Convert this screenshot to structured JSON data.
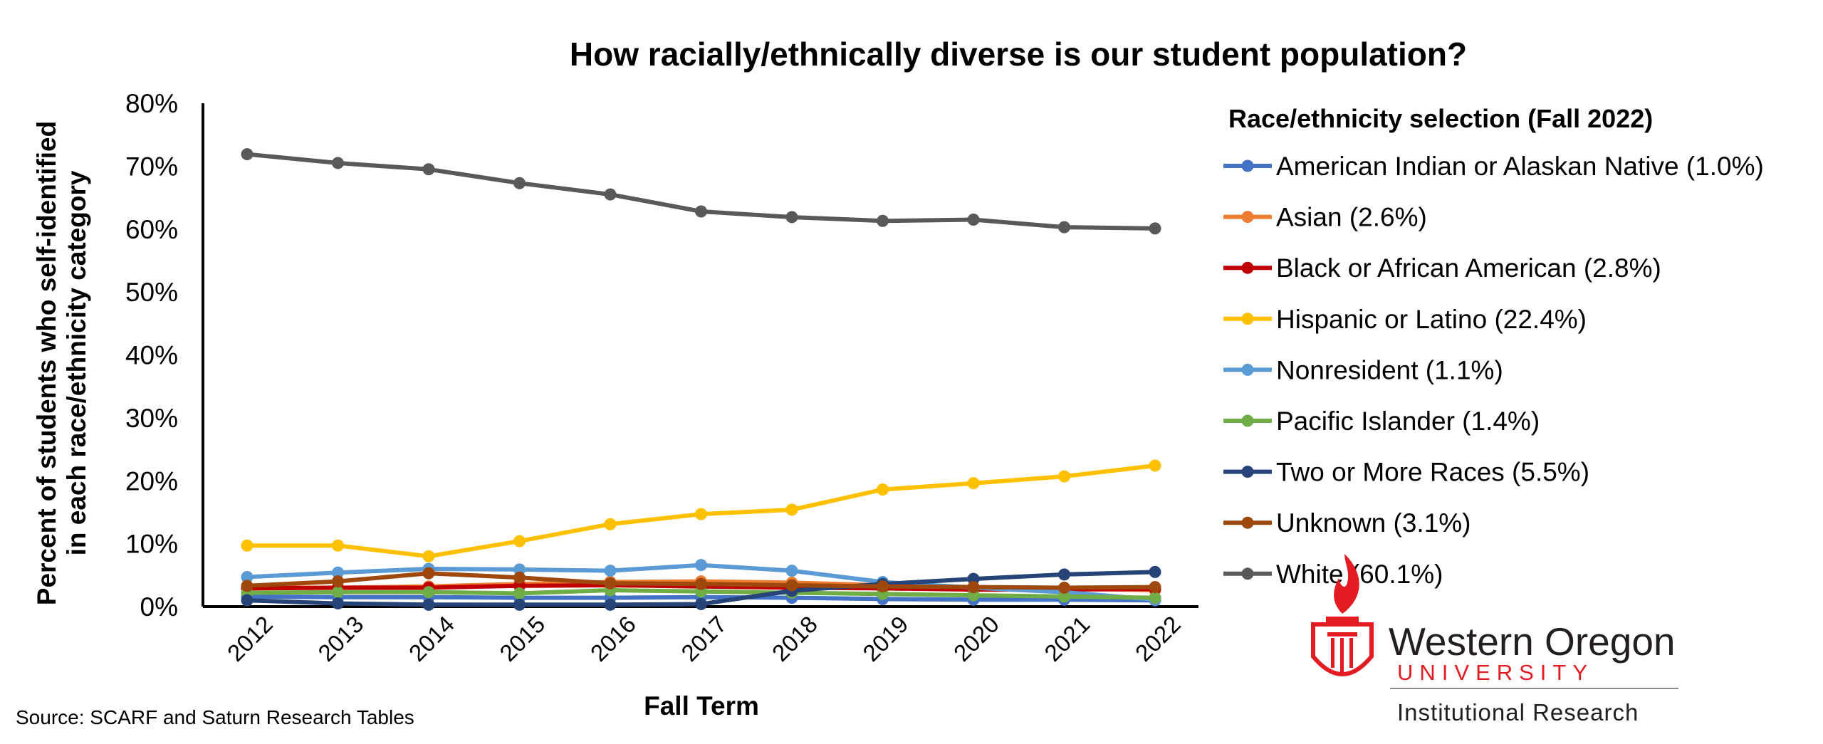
{
  "chart_data": {
    "type": "line",
    "title": "How racially/ethnically diverse is our student population?",
    "xlabel": "Fall Term",
    "ylabel": [
      "Percent of students who self-identified",
      "in each race/ethnicity category"
    ],
    "categories": [
      "2012",
      "2013",
      "2014",
      "2015",
      "2016",
      "2017",
      "2018",
      "2019",
      "2020",
      "2021",
      "2022"
    ],
    "y_ticks": [
      "0%",
      "10%",
      "20%",
      "30%",
      "40%",
      "50%",
      "60%",
      "70%",
      "80%"
    ],
    "ylim": [
      0,
      80
    ],
    "grid": false,
    "legend_position": "right",
    "legend_title": "Race/ethnicity selection (Fall 2022)",
    "series": [
      {
        "name": "American Indian or Alaskan Native (1.0%)",
        "color": "#4472C4",
        "values": [
          1.6,
          1.5,
          1.5,
          1.4,
          1.4,
          1.5,
          1.4,
          1.2,
          1.1,
          1.1,
          1.0
        ]
      },
      {
        "name": "Asian (2.6%)",
        "color": "#ED7D31",
        "values": [
          3.0,
          3.0,
          3.2,
          3.6,
          3.9,
          4.0,
          3.8,
          3.4,
          3.1,
          2.9,
          2.6
        ]
      },
      {
        "name": "Black or African American (2.8%)",
        "color": "#C00000",
        "values": [
          2.9,
          3.0,
          3.0,
          3.3,
          3.4,
          3.2,
          3.0,
          2.9,
          2.7,
          2.7,
          2.8
        ]
      },
      {
        "name": "Hispanic or Latino (22.4%)",
        "color": "#FFC000",
        "values": [
          9.7,
          9.7,
          8.0,
          10.4,
          13.1,
          14.7,
          15.4,
          18.6,
          19.6,
          20.7,
          22.4
        ]
      },
      {
        "name": "Nonresident (1.1%)",
        "color": "#5B9BD5",
        "values": [
          4.7,
          5.4,
          6.0,
          5.9,
          5.7,
          6.6,
          5.7,
          3.9,
          3.0,
          2.3,
          1.1
        ]
      },
      {
        "name": "Pacific Islander (1.4%)",
        "color": "#70AD47",
        "values": [
          2.2,
          2.3,
          2.3,
          2.1,
          2.6,
          2.4,
          2.2,
          2.0,
          1.8,
          1.6,
          1.4
        ]
      },
      {
        "name": "Two or More Races (5.5%)",
        "color": "#264478",
        "values": [
          1.0,
          0.5,
          0.3,
          0.3,
          0.3,
          0.4,
          2.5,
          3.6,
          4.4,
          5.1,
          5.5
        ]
      },
      {
        "name": "Unknown (3.1%)",
        "color": "#9E480E",
        "values": [
          3.3,
          4.0,
          5.3,
          4.6,
          3.7,
          3.6,
          3.4,
          3.2,
          3.1,
          3.0,
          3.1
        ]
      },
      {
        "name": "White (60.1%)",
        "color": "#595959",
        "values": [
          71.9,
          70.5,
          69.5,
          67.3,
          65.5,
          62.8,
          61.9,
          61.3,
          61.5,
          60.3,
          60.1
        ]
      }
    ]
  },
  "source_note": "Source: SCARF and Saturn Research Tables",
  "logo": {
    "name": "Western Oregon",
    "sub": "UNIVERSITY",
    "dept": "Institutional Research",
    "accent_color": "#E31B23"
  }
}
